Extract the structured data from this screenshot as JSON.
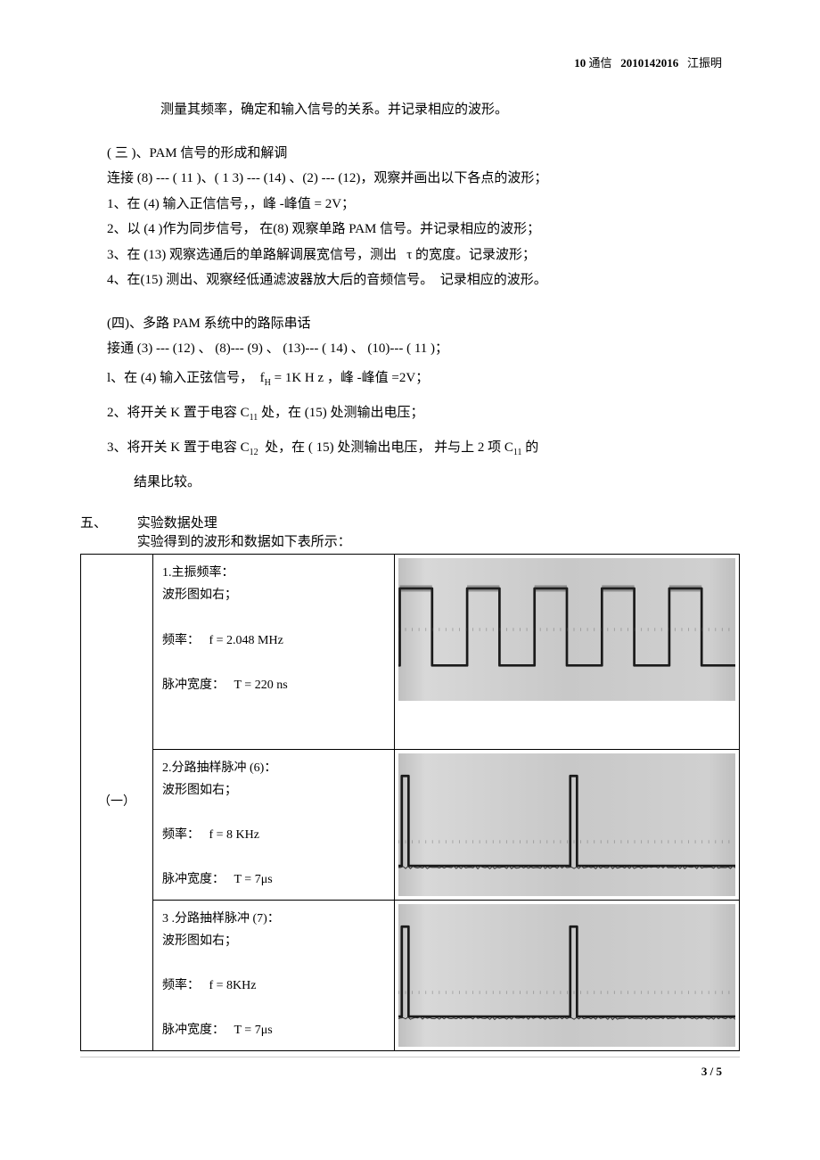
{
  "header": {
    "course_pre": "10",
    "course": "通信",
    "id": "2010142016",
    "name": "江振明"
  },
  "intro_line": "测量其频率，确定和输入信号的关系。并记录相应的波形。",
  "sec3": {
    "title": "( 三 )、PAM 信号的形成和解调",
    "line_connect": "连接 (8) --- ( 11 )、( 1 3) --- (14) 、(2) --- (12)，观察并画出以下各点的波形；",
    "li1": "1、在 (4) 输入正信信号，，峰 -峰值 = 2V；",
    "li2": "2、以 (4 )作为同步信号， 在(8) 观察单路 PAM 信号。并记录相应的波形；",
    "li3_a": "3、在 (13) 观察选通后的单路解调展宽信号，测出",
    "li3_tau": "τ",
    "li3_b": "的宽度。记录波形；",
    "li4": "4、在(15) 测出、观察经低通滤波器放大后的音频信号。　记录相应的波形。"
  },
  "sec4": {
    "title": "(四)、多路 PAM 系统中的路际串话",
    "line_connect": "接通 (3) --- (12) 、 (8)--- (9) 、 (13)--- ( 14) 、 (10)--- ( 11 )；",
    "li1": "l、在 (4) 输入正弦信号，  f_H  = 1K H z ，峰 -峰值 =2V；",
    "li2": "2、将开关 K 置于电容 C_11 处，在 (15) 处测输出电压；",
    "li3": "3、将开关 K 置于电容 C_12  处，在 ( 15) 处测输出电压， 并与上 2 项 C_11 的",
    "li3b": "结果比较。"
  },
  "sec5": {
    "num": "五、",
    "title": "实验数据处理",
    "sub": "实验得到的波形和数据如下表所示："
  },
  "table": {
    "group": "（一）",
    "rows": [
      {
        "title": "1.主振频率：",
        "note": "波形图如右；",
        "freq_label": "频率：",
        "freq": "f  = 2.048 MHz",
        "pw_label": "脉冲宽度：",
        "pw": "T  = 220 ns",
        "wave": {
          "type": "square",
          "cycles": 5,
          "duty": 0.5,
          "amp": 45,
          "thick": 3,
          "noise": true
        }
      },
      {
        "title": "2.分路抽样脉冲 (6)：",
        "note": "波形图如右；",
        "freq_label": "频率：",
        "freq": "f  = 8 KHz",
        "pw_label": "脉冲宽度：",
        "pw": "T  = 7μs",
        "wave": {
          "type": "pulse",
          "cycles": 2,
          "duty": 0.06,
          "amp": 60,
          "thick": 3,
          "noise": true
        }
      },
      {
        "title": "3 .分路抽样脉冲 (7)：",
        "note": "波形图如右；",
        "freq_label": "频率：",
        "freq": "f  = 8KHz",
        "pw_label": "脉冲宽度：",
        "pw": "T  = 7μs",
        "wave": {
          "type": "pulse",
          "cycles": 2,
          "duty": 0.06,
          "amp": 60,
          "thick": 3,
          "noise": true
        }
      }
    ]
  },
  "page": "3 / 5"
}
